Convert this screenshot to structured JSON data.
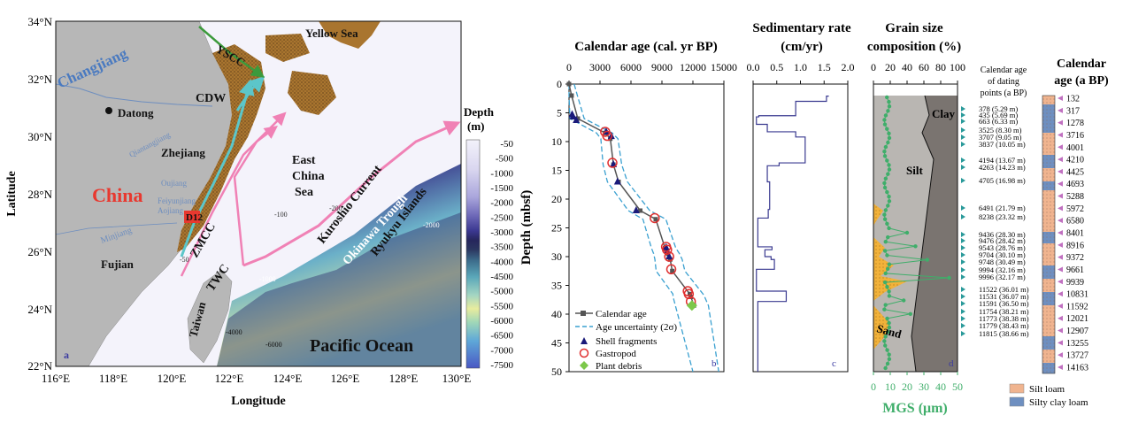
{
  "map": {
    "lat_ticks": [
      "34°N",
      "32°N",
      "30°N",
      "28°N",
      "26°N",
      "24°N",
      "22°N"
    ],
    "lon_ticks": [
      "116°E",
      "118°E",
      "120°E",
      "122°E",
      "124°E",
      "126°E",
      "128°E",
      "130°E"
    ],
    "ylabel": "Latitude",
    "xlabel": "Longitude",
    "panel_label": "a",
    "labels": {
      "yellow_sea": "Yellow Sea",
      "yscc": "YSCC",
      "changjiang": "Changjiang",
      "datong": "Datong",
      "cdw": "CDW",
      "zhejiang": "Zhejiang",
      "qiantangjiang": "Qiantangjiang",
      "east_china_sea_1": "East",
      "east_china_sea_2": "China",
      "east_china_sea_3": "Sea",
      "kuroshio": "Kuroshio Current",
      "okinawa": "Okinawa Trough",
      "ryukyu": "Ryukyu Islands",
      "china": "China",
      "oujiang": "Oujiang",
      "feiyunjiang": "Feiyunjiang",
      "aojiang": "Aojiang",
      "d12": "D12",
      "zmcc": "ZMCC",
      "minjiang": "Minjiang",
      "twc": "TWC",
      "fujian": "Fujian",
      "taiwan": "Taiwan",
      "pacific": "Pacific Ocean",
      "c100": "-100",
      "c200": "-200",
      "c50": "-50",
      "c1000": "-1000",
      "c2000": "-2000",
      "c4000": "-4000",
      "c6000": "-6000"
    },
    "depth_legend": {
      "title_1": "Depth",
      "title_2": "(m)",
      "levels": [
        "-50",
        "-500",
        "-1000",
        "-1500",
        "-2000",
        "-2500",
        "-3000",
        "-3500",
        "-4000",
        "-4500",
        "-5000",
        "-5500",
        "-6000",
        "-6500",
        "-7000",
        "-7500"
      ]
    },
    "colors": {
      "land": "#b7b7b7",
      "sea_shallow": "#f4f3fb",
      "sediment": "#a9752f",
      "warm_current": "#f081b5",
      "cold_current": "#5cc6c9",
      "yscc": "#3c9a3c",
      "china": "#e8382f"
    }
  },
  "chart_data": [
    {
      "type": "scatter",
      "panel": "b",
      "title": "Calendar age (cal. yr BP)",
      "ylabel": "Depth (mbsf)",
      "xlim": [
        0,
        15000
      ],
      "ylim": [
        0,
        50
      ],
      "x_ticks": [
        "0",
        "3000",
        "6000",
        "9000",
        "12000",
        "15000"
      ],
      "y_ticks": [
        "0",
        "5",
        "10",
        "15",
        "20",
        "25",
        "30",
        "35",
        "40",
        "45",
        "50"
      ],
      "legend": [
        "Calendar age",
        "Age uncertainty (2σ)",
        "Shell fragments",
        "Gastropod",
        "Plant debris"
      ],
      "calendar_age": {
        "x": [
          0,
          250,
          850,
          3500,
          4000,
          4300,
          4800,
          6900,
          8400,
          9300,
          9600,
          9800,
          10000,
          11700,
          11800,
          12100
        ],
        "y": [
          0,
          2,
          6,
          8.5,
          9.5,
          14,
          17,
          22,
          23.5,
          28.5,
          29.5,
          30.5,
          32.5,
          36.5,
          37,
          38.5
        ]
      },
      "shell_fragments": {
        "x": [
          300,
          400,
          700,
          3600,
          4100,
          4300,
          4700,
          6500,
          9400,
          9500,
          9700
        ],
        "y": [
          5.3,
          5.7,
          6.3,
          8.3,
          9.1,
          14,
          17,
          22,
          28.4,
          29,
          30
        ]
      },
      "gastropod": {
        "x": [
          3500,
          3700,
          4200,
          8300,
          9400,
          9500,
          9700,
          9900,
          11500,
          11600,
          11800
        ],
        "y": [
          8.3,
          9,
          13.7,
          23.3,
          28.3,
          28.8,
          30,
          32.2,
          36,
          36.5,
          37.8
        ]
      },
      "plant_debris": {
        "x": [
          11900
        ],
        "y": [
          38.5
        ]
      }
    },
    {
      "type": "line",
      "panel": "c",
      "title_1": "Sedimentary rate",
      "title_2": "(cm/yr)",
      "xlim": [
        0,
        2
      ],
      "x_ticks": [
        "0.0",
        "0.5",
        "1.0",
        "1.5",
        "2.0"
      ],
      "steps": [
        [
          2.1,
          1.6
        ],
        [
          3,
          1.55
        ],
        [
          5.5,
          0.9
        ],
        [
          5.7,
          0.12
        ],
        [
          7,
          0.07
        ],
        [
          8.3,
          0.3
        ],
        [
          9.2,
          0.9
        ],
        [
          13.7,
          1.1
        ],
        [
          14.2,
          0.55
        ],
        [
          17,
          0.3
        ],
        [
          21.8,
          0.35
        ],
        [
          23.3,
          0.32
        ],
        [
          28.3,
          0.1
        ],
        [
          28.8,
          0.4
        ],
        [
          30,
          0.25
        ],
        [
          30.5,
          0.38
        ],
        [
          32.2,
          0.45
        ],
        [
          36,
          0.07
        ],
        [
          37.8,
          0.7
        ],
        [
          38.6,
          0.1
        ],
        [
          50,
          0.1
        ]
      ]
    },
    {
      "type": "area",
      "panel": "d",
      "title_1": "Grain size",
      "title_2": "composition (%)",
      "x_ticks_top": [
        "0",
        "20",
        "40",
        "60",
        "80",
        "100"
      ],
      "x_ticks_bottom": [
        "0",
        "10",
        "20",
        "30",
        "40",
        "50"
      ],
      "xlabel": "MGS (μm)",
      "labels": [
        "Clay",
        "Silt",
        "Sand"
      ]
    }
  ],
  "dating_points": {
    "title_1": "Calendar age",
    "title_2": "of dating",
    "title_3": "points (a BP)",
    "items": [
      "378 (5.29 m)",
      "435 (5.69 m)",
      "663 (6.33 m)",
      "3525 (8.30 m)",
      "3707 (9.05 m)",
      "3837 (10.05 m)",
      "4194 (13.67 m)",
      "4263 (14.23 m)",
      "4705 (16.98 m)",
      "6491 (21.79 m)",
      "8238 (23.32 m)",
      "9436 (28.30 m)",
      "9476 (28.42 m)",
      "9543 (28.76 m)",
      "9704 (30.10 m)",
      "9748 (30.49 m)",
      "9994 (32.16 m)",
      "9996 (32.17 m)",
      "11522 (36.01 m)",
      "11531 (36.07 m)",
      "11591 (36.50 m)",
      "11754 (38.21 m)",
      "11773 (38.38 m)",
      "11779 (38.43 m)",
      "11815 (38.66 m)"
    ]
  },
  "calendar_column": {
    "title_1": "Calendar",
    "title_2": "age (a BP)",
    "ages": [
      "132",
      "317",
      "1278",
      "3716",
      "4001",
      "4210",
      "4425",
      "4693",
      "5288",
      "5972",
      "6580",
      "8401",
      "8916",
      "9372",
      "9661",
      "9939",
      "10831",
      "11592",
      "12021",
      "12907",
      "13255",
      "13727",
      "14163"
    ],
    "legend": [
      "Silt loam",
      "Silty clay loam"
    ],
    "colors": {
      "silt_loam": "#f0b48f",
      "silty_clay_loam": "#6e8fc0"
    }
  }
}
